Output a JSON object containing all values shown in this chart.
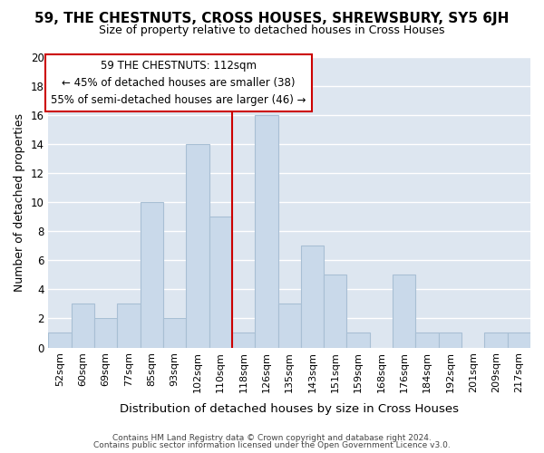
{
  "title": "59, THE CHESTNUTS, CROSS HOUSES, SHREWSBURY, SY5 6JH",
  "subtitle": "Size of property relative to detached houses in Cross Houses",
  "xlabel": "Distribution of detached houses by size in Cross Houses",
  "ylabel": "Number of detached properties",
  "bar_color": "#c9d9ea",
  "bar_edge_color": "#a8bfd4",
  "grid_color": "#ffffff",
  "bg_color": "#dde6f0",
  "bins": [
    "52sqm",
    "60sqm",
    "69sqm",
    "77sqm",
    "85sqm",
    "93sqm",
    "102sqm",
    "110sqm",
    "118sqm",
    "126sqm",
    "135sqm",
    "143sqm",
    "151sqm",
    "159sqm",
    "168sqm",
    "176sqm",
    "184sqm",
    "192sqm",
    "201sqm",
    "209sqm",
    "217sqm"
  ],
  "counts": [
    1,
    3,
    2,
    3,
    10,
    2,
    14,
    9,
    1,
    16,
    3,
    7,
    5,
    1,
    0,
    5,
    1,
    1,
    0,
    1,
    1
  ],
  "vline_color": "#cc0000",
  "annotation_title": "59 THE CHESTNUTS: 112sqm",
  "annotation_line1": "← 45% of detached houses are smaller (38)",
  "annotation_line2": "55% of semi-detached houses are larger (46) →",
  "annotation_box_edge": "#cc0000",
  "annotation_box_bg": "#ffffff",
  "ylim": [
    0,
    20
  ],
  "yticks": [
    0,
    2,
    4,
    6,
    8,
    10,
    12,
    14,
    16,
    18,
    20
  ],
  "footer1": "Contains HM Land Registry data © Crown copyright and database right 2024.",
  "footer2": "Contains public sector information licensed under the Open Government Licence v3.0."
}
